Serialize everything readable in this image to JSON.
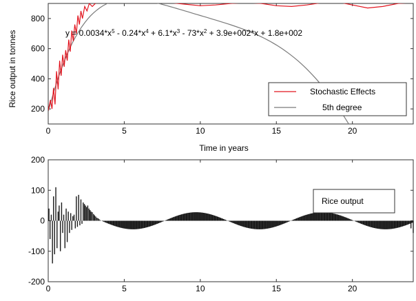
{
  "chart_data": [
    {
      "type": "line",
      "title": "",
      "xlabel": "Time in years",
      "ylabel": "Rice output in tonnes",
      "xlim": [
        0,
        24
      ],
      "ylim": [
        100,
        900
      ],
      "xticks": [
        0,
        5,
        10,
        15,
        20
      ],
      "yticks": [
        200,
        400,
        600,
        800
      ],
      "equation": {
        "parts": [
          {
            "t": "y = 0.0034*x"
          },
          {
            "sup": "5"
          },
          {
            "t": " - 0.24*x"
          },
          {
            "sup": "4"
          },
          {
            "t": " + 6.1*x"
          },
          {
            "sup": "3"
          },
          {
            "t": " - 73*x"
          },
          {
            "sup": "2"
          },
          {
            "t": " + 3.9e+002*x + 1.8e+002"
          }
        ]
      },
      "legend": {
        "position": "bottom-right",
        "entries": [
          "Stochastic Effects",
          "5th degree"
        ]
      },
      "series": [
        {
          "name": "Stochastic Effects",
          "color": "#e2141e",
          "x": [
            0,
            0.15,
            0.25,
            0.35,
            0.45,
            0.55,
            0.65,
            0.75,
            0.85,
            0.95,
            1.05,
            1.15,
            1.25,
            1.35,
            1.45,
            1.55,
            1.65,
            1.75,
            1.85,
            1.95,
            2.05,
            2.15,
            2.25,
            2.4,
            2.55,
            2.7,
            2.9,
            3.2,
            3.6,
            4,
            5,
            6,
            7,
            8,
            9,
            10,
            11,
            12,
            13,
            14,
            15,
            16,
            17,
            18,
            19,
            20,
            21,
            22,
            23,
            24
          ],
          "y": [
            190,
            260,
            200,
            340,
            230,
            450,
            330,
            520,
            420,
            560,
            480,
            590,
            520,
            660,
            580,
            720,
            650,
            760,
            700,
            820,
            760,
            850,
            800,
            880,
            850,
            900,
            880,
            910,
            920,
            925,
            935,
            930,
            915,
            905,
            895,
            885,
            890,
            900,
            905,
            900,
            885,
            880,
            890,
            905,
            910,
            890,
            870,
            880,
            900,
            905
          ]
        },
        {
          "name": "5th degree",
          "color": "#7a7a7a",
          "fit": "poly5"
        }
      ]
    },
    {
      "type": "bar",
      "title": "",
      "xlabel": "",
      "ylabel": "",
      "xlim": [
        0,
        24
      ],
      "ylim": [
        -200,
        200
      ],
      "xticks": [
        0,
        5,
        10,
        15,
        20
      ],
      "yticks": [
        -200,
        -100,
        0,
        100,
        200
      ],
      "legend": {
        "position": "top-right",
        "entries": [
          "Rice output"
        ]
      },
      "series": [
        {
          "name": "Rice output",
          "color": "#1a1a1a",
          "x": [
            0.05,
            0.12,
            0.2,
            0.28,
            0.35,
            0.42,
            0.5,
            0.58,
            0.65,
            0.72,
            0.8,
            0.88,
            0.95,
            1.02,
            1.1,
            1.18,
            1.25,
            1.32,
            1.4,
            1.48,
            1.55,
            1.62,
            1.7,
            1.78,
            1.85,
            1.92,
            2.0,
            2.08,
            2.15,
            2.22,
            2.3,
            2.38,
            2.45,
            2.52,
            2.6,
            2.68,
            2.75,
            2.82,
            2.9,
            2.98,
            3.05,
            3.12,
            3.2,
            3.28,
            3.35,
            3.42,
            3.5
          ],
          "y": [
            40,
            -60,
            20,
            -140,
            80,
            -110,
            110,
            -90,
            30,
            50,
            -100,
            60,
            -40,
            20,
            -90,
            40,
            -70,
            30,
            -40,
            25,
            -30,
            15,
            20,
            -25,
            80,
            -20,
            85,
            -15,
            70,
            -10,
            60,
            55,
            50,
            45,
            50,
            40,
            35,
            30,
            28,
            22,
            18,
            14,
            10,
            8,
            5,
            2,
            0
          ]
        }
      ]
    }
  ]
}
